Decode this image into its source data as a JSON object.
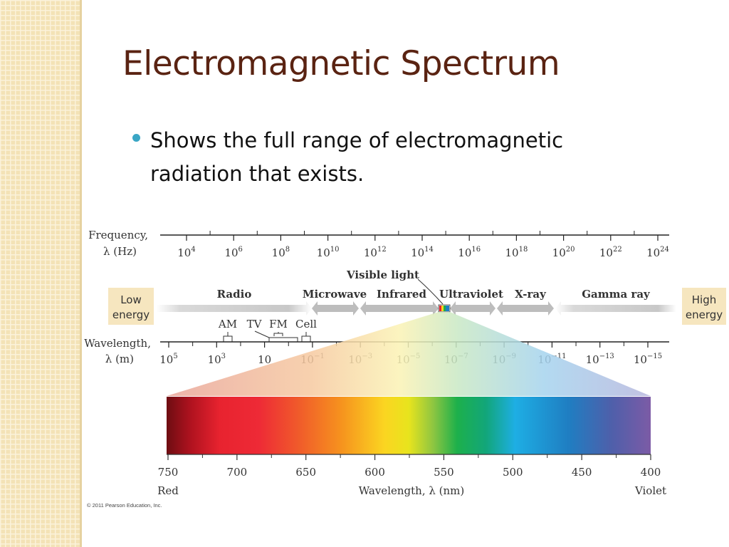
{
  "slide": {
    "title": "Electromagnetic Spectrum",
    "bullet": "Shows the full range of electromagnetic radiation that exists."
  },
  "diagram": {
    "frequency_label": [
      "Frequency,",
      "λ (Hz)"
    ],
    "frequency_ticks": [
      {
        "base": "10",
        "exp": "4"
      },
      {
        "base": "10",
        "exp": "6"
      },
      {
        "base": "10",
        "exp": "8"
      },
      {
        "base": "10",
        "exp": "10"
      },
      {
        "base": "10",
        "exp": "12"
      },
      {
        "base": "10",
        "exp": "14"
      },
      {
        "base": "10",
        "exp": "16"
      },
      {
        "base": "10",
        "exp": "18"
      },
      {
        "base": "10",
        "exp": "20"
      },
      {
        "base": "10",
        "exp": "22"
      },
      {
        "base": "10",
        "exp": "24"
      }
    ],
    "low_energy": [
      "Low",
      "energy"
    ],
    "high_energy": [
      "High",
      "energy"
    ],
    "regions": [
      "Radio",
      "Microwave",
      "Infrared",
      "Ultraviolet",
      "X-ray",
      "Gamma ray"
    ],
    "visible_light_label": "Visible light",
    "bands": [
      "AM",
      "TV",
      "FM",
      "Cell"
    ],
    "wavelength_label": [
      "Wavelength,",
      "λ (m)"
    ],
    "wavelength_ticks": [
      {
        "base": "10",
        "exp": "5"
      },
      {
        "base": "10",
        "exp": "3"
      },
      {
        "base": "10",
        "exp": ""
      },
      {
        "base": "10",
        "exp": "−1"
      },
      {
        "base": "10",
        "exp": "−3"
      },
      {
        "base": "10",
        "exp": "−5"
      },
      {
        "base": "10",
        "exp": "−7"
      },
      {
        "base": "10",
        "exp": "−9"
      },
      {
        "base": "10",
        "exp": "−11"
      },
      {
        "base": "10",
        "exp": "−13"
      },
      {
        "base": "10",
        "exp": "−15"
      }
    ],
    "nm_ticks": [
      "750",
      "700",
      "650",
      "600",
      "550",
      "500",
      "450",
      "400"
    ],
    "red_label": "Red",
    "violet_label": "Violet",
    "nm_axis_label": "Wavelength, λ (nm)",
    "copyright": "© 2011 Pearson Education, Inc."
  },
  "colors": {
    "title": "#5a2312",
    "bullet": "#3aa6c5",
    "sidebar": "#f3e2b6",
    "energy_box": "#f6e6bf"
  }
}
